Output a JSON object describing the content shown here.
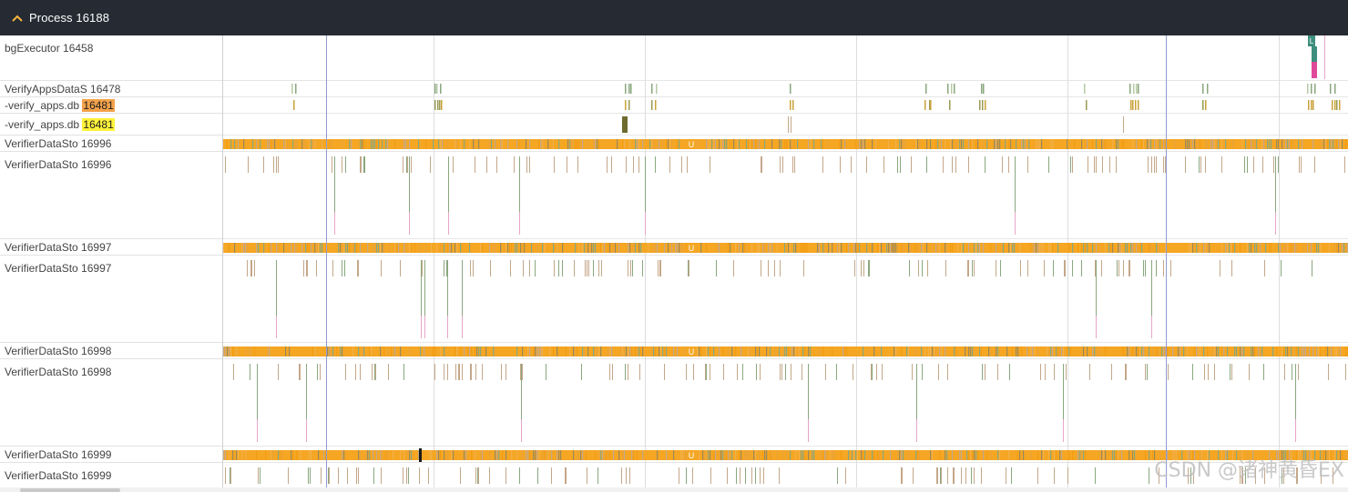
{
  "header": {
    "title": "Process 16188",
    "icon": "chevron-up-icon"
  },
  "tracks": [
    {
      "name": "bgExecutor 16458"
    },
    {
      "name": "VerifyAppsDataS 16478"
    },
    {
      "name": "-verify_apps.db ",
      "highlight": "16481",
      "highlight_color": "#f4a24a"
    },
    {
      "name": "-verify_apps.db ",
      "highlight": "16481",
      "highlight_color": "#fff23a"
    },
    {
      "name": "VerifierDataSto 16996"
    },
    {
      "name": "VerifierDataSto 16996"
    },
    {
      "name": "VerifierDataSto 16997"
    },
    {
      "name": "VerifierDataSto 16997"
    },
    {
      "name": "VerifierDataSto 16998"
    },
    {
      "name": "VerifierDataSto 16998"
    },
    {
      "name": "VerifierDataSto 16999"
    },
    {
      "name": "VerifierDataSto 16999"
    }
  ],
  "state_marker_label": "U",
  "slice_label": "L",
  "colors": {
    "header_bg": "#262a33",
    "running_orange": "#f5a623",
    "runnable_green": "#8aa77e",
    "sleeping_tan": "#c4a789",
    "cursor_line": "#8f9bd1",
    "slice_teal": "#3e8e7e",
    "slice_pink": "#e0489a"
  },
  "watermark": "CSDN @诸神黄昏EX"
}
